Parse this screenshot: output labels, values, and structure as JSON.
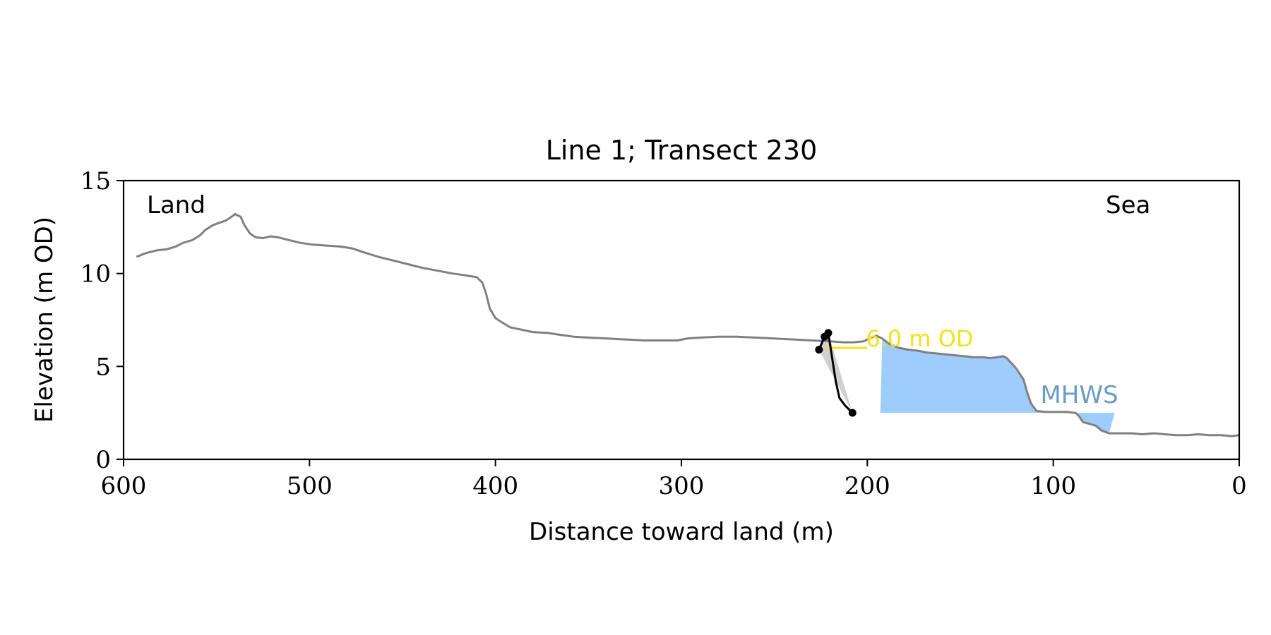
{
  "chart_data": {
    "type": "line",
    "title": "Line 1; Transect 230",
    "xlabel": "Distance toward land (m)",
    "ylabel": "Elevation (m OD)",
    "xlim": [
      600,
      0
    ],
    "ylim": [
      0,
      15
    ],
    "x_ticks": [
      "600",
      "500",
      "400",
      "300",
      "200",
      "100",
      "0"
    ],
    "y_ticks": [
      "0",
      "5",
      "10",
      "15"
    ],
    "grid": false,
    "annotations": {
      "land": "Land",
      "sea": "Sea",
      "threshold_label": "6.0 m OD",
      "mhws_label": "MHWS"
    },
    "threshold": {
      "elevation": 6.0,
      "x_start": 222,
      "x_end": 200
    },
    "mhws": {
      "elevation": 2.5,
      "x_start": 193,
      "x_end": 67
    },
    "cliff_points": [
      {
        "x": 226,
        "y": 5.9
      },
      {
        "x": 223,
        "y": 6.6
      },
      {
        "x": 221,
        "y": 6.8
      },
      {
        "x": 208,
        "y": 2.5
      }
    ],
    "profile": [
      [
        593,
        10.9
      ],
      [
        588,
        11.1
      ],
      [
        582,
        11.25
      ],
      [
        577,
        11.3
      ],
      [
        572,
        11.45
      ],
      [
        568,
        11.65
      ],
      [
        563,
        11.8
      ],
      [
        559,
        12.05
      ],
      [
        556,
        12.35
      ],
      [
        552,
        12.6
      ],
      [
        548,
        12.75
      ],
      [
        545,
        12.85
      ],
      [
        542,
        13.05
      ],
      [
        540,
        13.2
      ],
      [
        537,
        13.05
      ],
      [
        535,
        12.6
      ],
      [
        532,
        12.15
      ],
      [
        529,
        11.95
      ],
      [
        525,
        11.9
      ],
      [
        521,
        12.0
      ],
      [
        517,
        11.95
      ],
      [
        511,
        11.8
      ],
      [
        505,
        11.65
      ],
      [
        498,
        11.55
      ],
      [
        490,
        11.5
      ],
      [
        483,
        11.45
      ],
      [
        477,
        11.35
      ],
      [
        471,
        11.15
      ],
      [
        463,
        10.9
      ],
      [
        455,
        10.7
      ],
      [
        447,
        10.5
      ],
      [
        439,
        10.3
      ],
      [
        431,
        10.15
      ],
      [
        423,
        10.0
      ],
      [
        416,
        9.9
      ],
      [
        410,
        9.8
      ],
      [
        407,
        9.5
      ],
      [
        405,
        8.9
      ],
      [
        403,
        8.1
      ],
      [
        400,
        7.6
      ],
      [
        397,
        7.4
      ],
      [
        392,
        7.1
      ],
      [
        387,
        7.0
      ],
      [
        380,
        6.85
      ],
      [
        372,
        6.8
      ],
      [
        365,
        6.7
      ],
      [
        358,
        6.6
      ],
      [
        350,
        6.55
      ],
      [
        340,
        6.5
      ],
      [
        330,
        6.45
      ],
      [
        320,
        6.4
      ],
      [
        310,
        6.4
      ],
      [
        302,
        6.4
      ],
      [
        297,
        6.5
      ],
      [
        290,
        6.55
      ],
      [
        280,
        6.6
      ],
      [
        270,
        6.6
      ],
      [
        260,
        6.55
      ],
      [
        250,
        6.5
      ],
      [
        240,
        6.45
      ],
      [
        230,
        6.4
      ],
      [
        220,
        6.35
      ],
      [
        213,
        6.3
      ],
      [
        207,
        6.3
      ],
      [
        202,
        6.35
      ],
      [
        198,
        6.55
      ],
      [
        195,
        6.65
      ],
      [
        192,
        6.5
      ],
      [
        188,
        6.2
      ],
      [
        183,
        6.0
      ],
      [
        178,
        5.9
      ],
      [
        173,
        5.85
      ],
      [
        168,
        5.75
      ],
      [
        163,
        5.7
      ],
      [
        158,
        5.65
      ],
      [
        153,
        5.6
      ],
      [
        148,
        5.55
      ],
      [
        143,
        5.5
      ],
      [
        138,
        5.5
      ],
      [
        134,
        5.45
      ],
      [
        130,
        5.5
      ],
      [
        127,
        5.55
      ],
      [
        125,
        5.45
      ],
      [
        120,
        4.9
      ],
      [
        116,
        4.3
      ],
      [
        114,
        3.6
      ],
      [
        112,
        3.0
      ],
      [
        109,
        2.6
      ],
      [
        104,
        2.55
      ],
      [
        99,
        2.55
      ],
      [
        93,
        2.55
      ],
      [
        88,
        2.5
      ],
      [
        86,
        2.3
      ],
      [
        84,
        2.0
      ],
      [
        80,
        1.9
      ],
      [
        77,
        1.8
      ],
      [
        74,
        1.55
      ],
      [
        70,
        1.4
      ],
      [
        65,
        1.4
      ],
      [
        58,
        1.4
      ],
      [
        52,
        1.35
      ],
      [
        46,
        1.4
      ],
      [
        40,
        1.35
      ],
      [
        34,
        1.3
      ],
      [
        28,
        1.3
      ],
      [
        22,
        1.35
      ],
      [
        16,
        1.3
      ],
      [
        10,
        1.3
      ],
      [
        4,
        1.25
      ],
      [
        0,
        1.3
      ]
    ]
  }
}
